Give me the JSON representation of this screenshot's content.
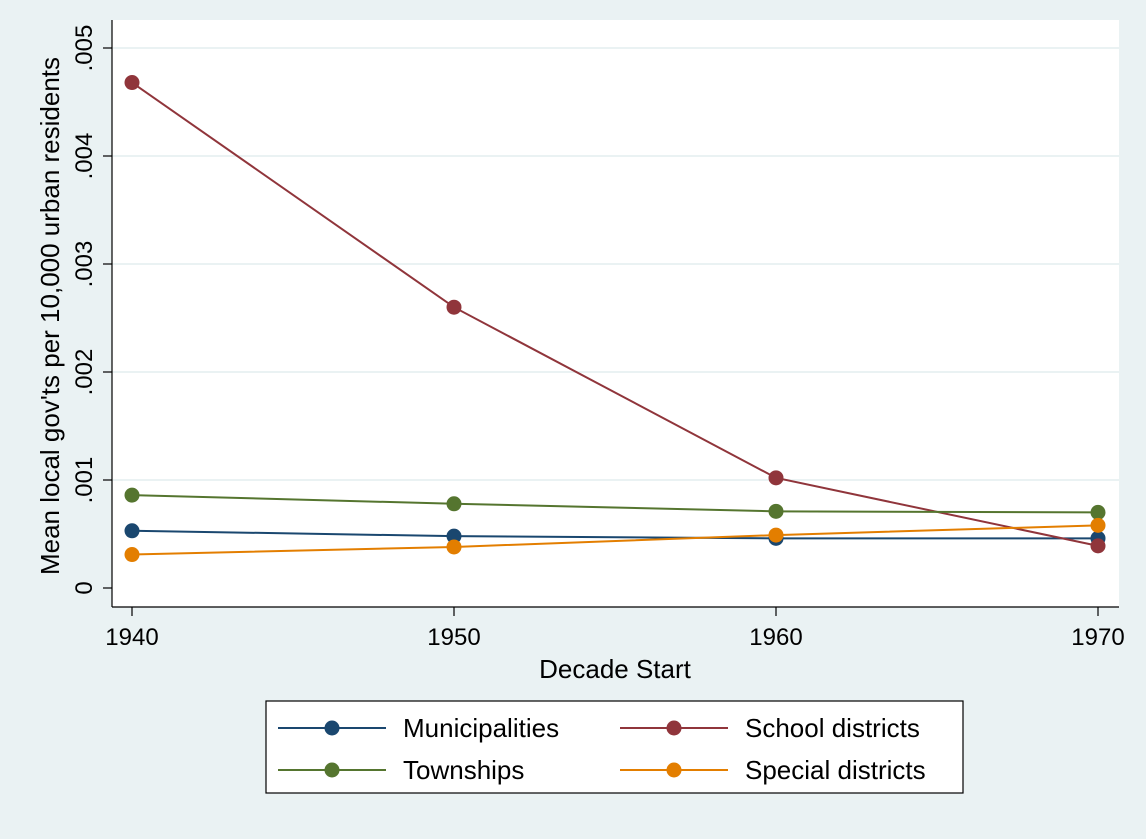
{
  "chart_data": {
    "type": "line",
    "title": "",
    "xlabel": "Decade Start",
    "ylabel": "Mean local gov'ts per 10,000 urban residents",
    "x": [
      1940,
      1950,
      1960,
      1970
    ],
    "x_ticks": [
      "1940",
      "1950",
      "1960",
      "1970"
    ],
    "xlim": [
      1940,
      1970
    ],
    "ylim": [
      0,
      0.005
    ],
    "y_ticks": [
      0,
      0.001,
      0.002,
      0.003,
      0.004,
      0.005
    ],
    "y_tick_labels": [
      "0",
      ".001",
      ".002",
      ".003",
      ".004",
      ".005"
    ],
    "grid": "horizontal",
    "legend_position": "bottom",
    "series": [
      {
        "name": "Municipalities",
        "color": "#1a476f",
        "values": [
          0.00053,
          0.00048,
          0.00046,
          0.00046
        ]
      },
      {
        "name": "School districts",
        "color": "#90353b",
        "values": [
          0.00468,
          0.0026,
          0.00102,
          0.00039
        ]
      },
      {
        "name": "Townships",
        "color": "#55752f",
        "values": [
          0.00086,
          0.00078,
          0.00071,
          0.0007
        ]
      },
      {
        "name": "Special districts",
        "color": "#e37e00",
        "values": [
          0.00031,
          0.00038,
          0.00049,
          0.00058
        ]
      }
    ]
  }
}
